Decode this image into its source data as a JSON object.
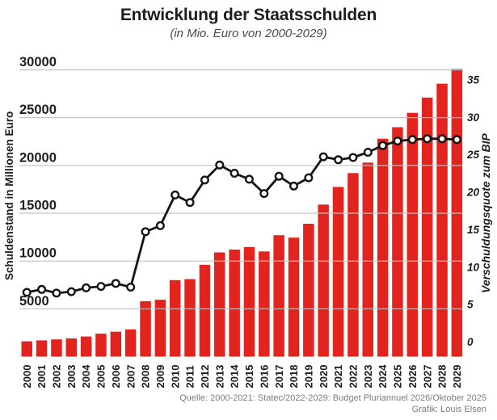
{
  "title": "Entwicklung der Staatsschulden",
  "subtitle": "(in Mio. Euro von 2000-2029)",
  "source": {
    "line1": "Quelle: 2000-2021: Statec/2022-2029: Budget Pluriannuel 2026/Oktober 2025",
    "line2": "Grafik: Louis Elsen"
  },
  "colors": {
    "bar": "#e2231e",
    "line": "#151513",
    "marker_fill": "#ffffff",
    "grid": "#c2c2c2",
    "text": "#1d1d1b",
    "subtitle": "#4a4a4a",
    "source": "#7d7d7d"
  },
  "chart_data": {
    "type": "bar",
    "subtype": "combo-bar-line",
    "categories": [
      "2000",
      "2001",
      "2002",
      "2003",
      "2004",
      "2005",
      "2006",
      "2007",
      "2008",
      "2009",
      "2010",
      "2011",
      "2012",
      "2013",
      "2014",
      "2015",
      "2016",
      "2017",
      "2018",
      "2019",
      "2020",
      "2021",
      "2022",
      "2023",
      "2024",
      "2025",
      "2026",
      "2027",
      "2028",
      "2029"
    ],
    "series": [
      {
        "name": "Schuldenstand in Millionen Euro",
        "type": "bar",
        "axis": "left",
        "unit": "Mio. Euro",
        "values": [
          1600,
          1700,
          1800,
          1900,
          2100,
          2400,
          2600,
          2850,
          5800,
          5950,
          8000,
          8100,
          9600,
          10900,
          11200,
          11450,
          11000,
          12700,
          12450,
          13900,
          15900,
          17750,
          19200,
          20300,
          22800,
          24000,
          25500,
          27100,
          28550,
          30100
        ]
      },
      {
        "name": "Verschuldungsquote zum BIP",
        "type": "line",
        "axis": "right",
        "unit": "% BIP",
        "values": [
          6.6,
          7.0,
          6.5,
          6.7,
          7.2,
          7.4,
          7.8,
          7.3,
          14.7,
          15.5,
          19.6,
          18.6,
          21.6,
          23.6,
          22.5,
          21.7,
          19.8,
          22.1,
          20.8,
          21.9,
          24.7,
          24.3,
          24.6,
          25.3,
          26.2,
          26.8,
          27.0,
          27.1,
          27.1,
          27.0
        ]
      }
    ],
    "left_axis": {
      "label": "Schuldenstand in Millionen Euro",
      "ticks": [
        5000,
        10000,
        15000,
        20000,
        25000,
        30000
      ],
      "range": [
        0,
        30250
      ]
    },
    "right_axis": {
      "label": "Verschuldungsquote zum BIP",
      "ticks": [
        0,
        5,
        10,
        15,
        20,
        25,
        30,
        35
      ],
      "range": [
        0,
        35
      ]
    },
    "grid": true,
    "legend": "none"
  }
}
